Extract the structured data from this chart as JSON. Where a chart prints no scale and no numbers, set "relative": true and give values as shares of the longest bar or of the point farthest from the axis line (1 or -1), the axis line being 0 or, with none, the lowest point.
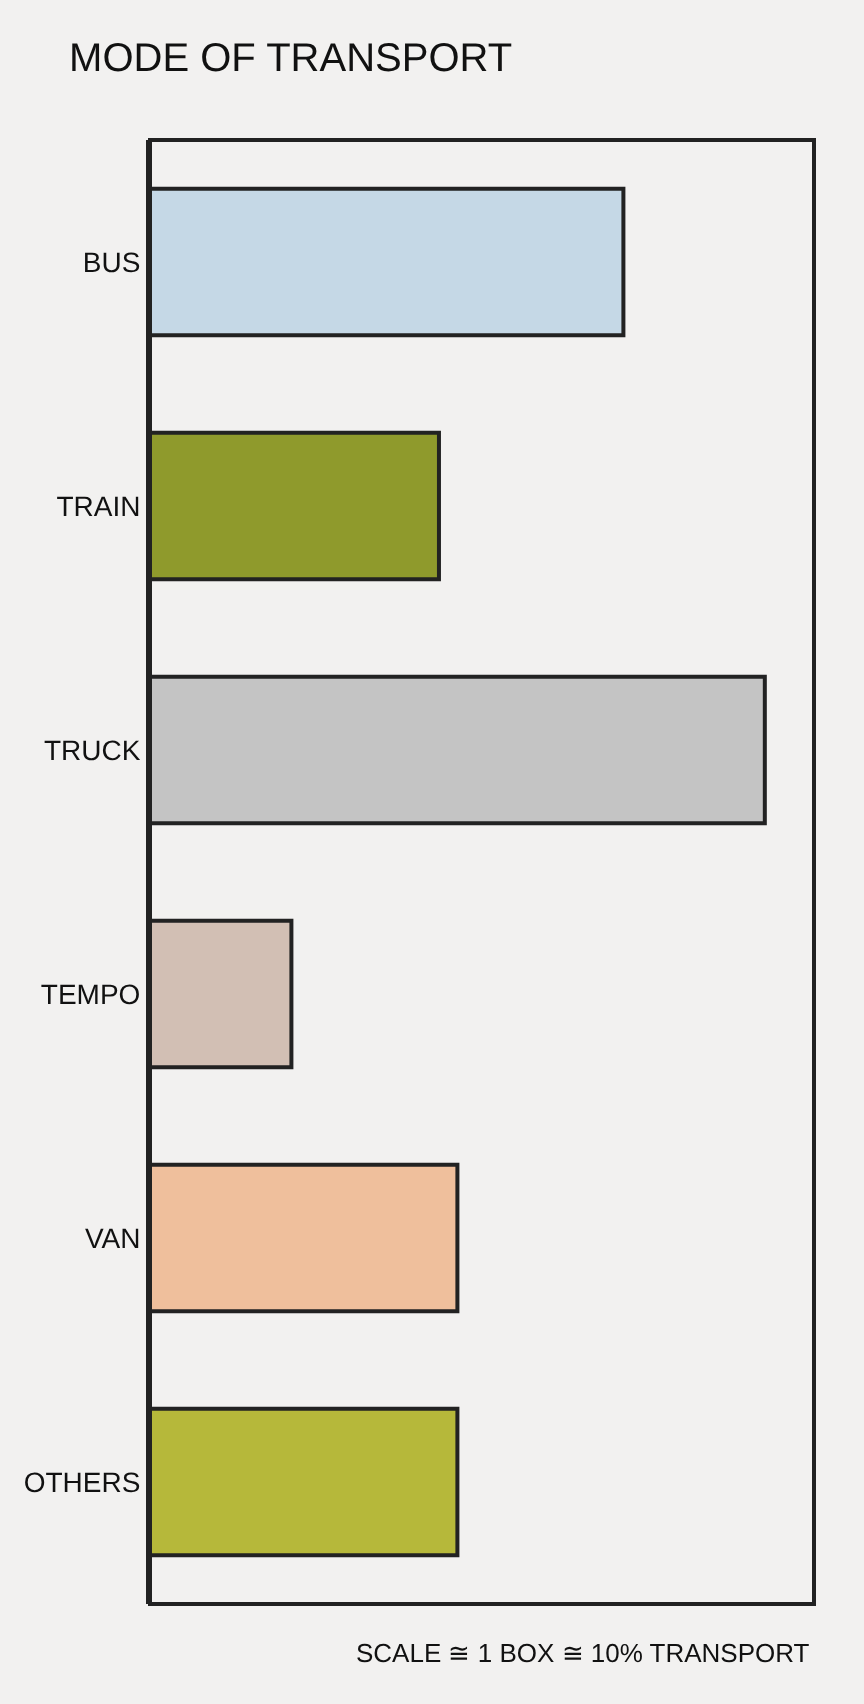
{
  "chart_data": {
    "type": "bar",
    "orientation": "horizontal",
    "relative": true,
    "title": "MODE OF TRANSPORT",
    "categories": [
      "BUS",
      "TRAIN",
      "TRUCK",
      "TEMPO",
      "VAN",
      "OTHERS"
    ],
    "values": [
      0.77,
      0.47,
      1,
      0.23,
      0.5,
      0.5
    ],
    "colors": [
      "#c5d8e6",
      "#8f9a2c",
      "#c4c4c4",
      "#d2bfb4",
      "#efbf9c",
      "#b6b83a"
    ],
    "annotations": [
      "SCALE ≅ 1 BOX ≅ 10% TRANSPORT"
    ],
    "legend": false,
    "tick_labels": "y"
  }
}
